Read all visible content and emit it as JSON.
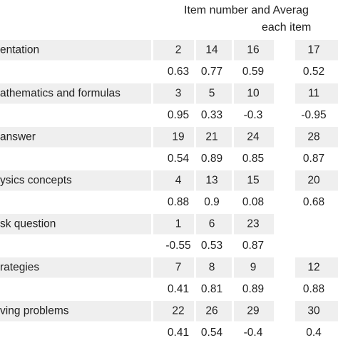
{
  "header": {
    "line1": "Item number and Averag",
    "line2": "each item"
  },
  "table": {
    "rows": [
      {
        "label": "entation",
        "items": [
          2,
          14,
          16,
          17
        ],
        "averages": [
          0.63,
          0.77,
          0.59,
          0.52
        ]
      },
      {
        "label": "athematics and formulas",
        "items": [
          3,
          5,
          10,
          11
        ],
        "averages": [
          0.95,
          0.33,
          -0.3,
          -0.95
        ]
      },
      {
        "label": "answer",
        "items": [
          19,
          21,
          24,
          28
        ],
        "averages": [
          0.54,
          0.89,
          0.85,
          0.87
        ]
      },
      {
        "label": "ysics concepts",
        "items": [
          4,
          13,
          15,
          20
        ],
        "averages": [
          0.88,
          0.9,
          0.08,
          0.68
        ]
      },
      {
        "label": "sk question",
        "items": [
          1,
          6,
          23
        ],
        "averages": [
          -0.55,
          0.53,
          0.87
        ]
      },
      {
        "label": "rategies",
        "items": [
          7,
          8,
          9,
          12
        ],
        "averages": [
          0.41,
          0.81,
          0.89,
          0.88
        ]
      },
      {
        "label": "ving problems",
        "items": [
          22,
          26,
          29,
          30
        ],
        "averages": [
          0.41,
          0.54,
          -0.4,
          0.4
        ]
      }
    ]
  }
}
